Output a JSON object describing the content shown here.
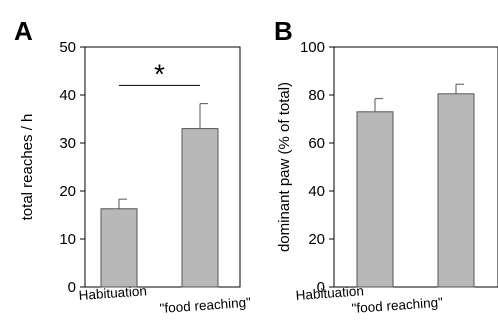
{
  "chart_data": [
    {
      "type": "bar",
      "panel_label": "A",
      "ylabel": "total reaches / h",
      "ylim": [
        0,
        50
      ],
      "yticks": [
        0,
        10,
        20,
        30,
        40,
        50
      ],
      "categories": [
        "Habituation",
        "\"food reaching\""
      ],
      "values": [
        16.3,
        33
      ],
      "errors": [
        2.0,
        5.2
      ],
      "bar_color": "#b8b8b8",
      "significance": {
        "label": "*",
        "between": [
          0,
          1
        ],
        "y": 42
      }
    },
    {
      "type": "bar",
      "panel_label": "B",
      "ylabel": "dominant paw (% of total)",
      "ylim": [
        0,
        100
      ],
      "yticks": [
        0,
        20,
        40,
        60,
        80,
        100
      ],
      "categories": [
        "Habituation",
        "\"food reaching\""
      ],
      "values": [
        73,
        80.5
      ],
      "errors": [
        5.5,
        4
      ],
      "bar_color": "#b8b8b8"
    }
  ]
}
